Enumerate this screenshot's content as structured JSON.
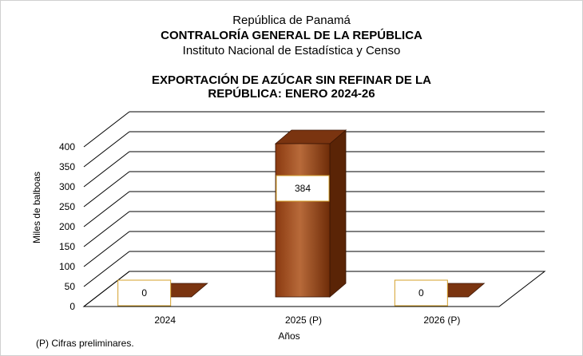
{
  "header": {
    "line1": "República de Panamá",
    "line2": "CONTRALORÍA GENERAL DE LA REPÚBLICA",
    "line3": "Instituto  Nacional de Estadística  y  Censo"
  },
  "chart_data": {
    "type": "bar",
    "title_line1": "EXPORTACIÓN DE AZÚCAR SIN REFINAR DE LA",
    "title_line2": "REPÚBLICA: ENERO 2024-26",
    "categories": [
      "2024",
      "2025 (P)",
      "2026 (P)"
    ],
    "values": [
      0,
      384,
      0
    ],
    "data_labels": [
      "0",
      "384",
      "0"
    ],
    "ylabel": "Miles de balboas",
    "xlabel": "Años",
    "ylim": [
      0,
      400
    ],
    "yticks": [
      "0",
      "50",
      "100",
      "150",
      "200",
      "250",
      "300",
      "350",
      "400"
    ],
    "grid": true,
    "style": "3d",
    "bar_color": "#8b3a0e"
  },
  "footnote": "(P) Cifras  preliminares."
}
